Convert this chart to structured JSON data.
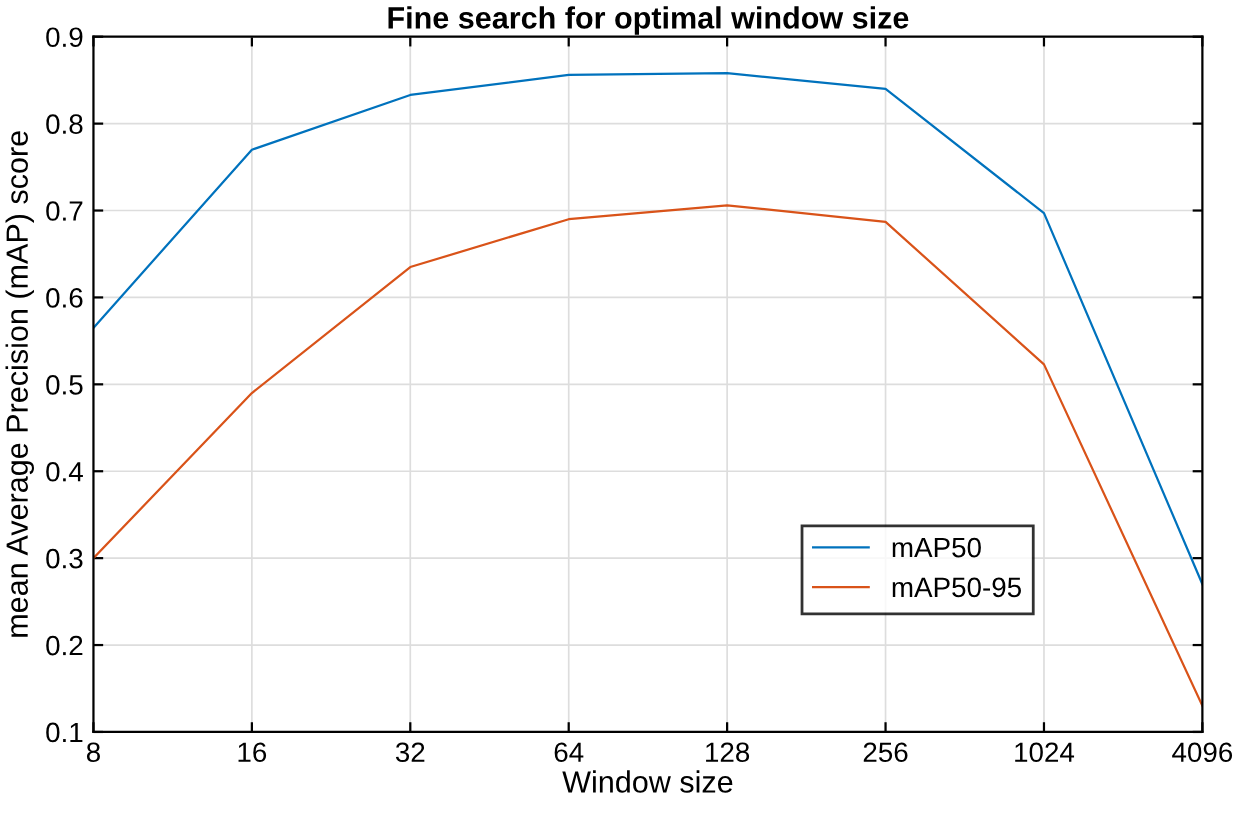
{
  "chart_data": {
    "type": "line",
    "title": "Fine search for optimal window size",
    "xlabel": "Window size",
    "ylabel": "mean Average Precision (mAP) score",
    "categories": [
      "8",
      "16",
      "32",
      "64",
      "128",
      "256",
      "1024",
      "4096"
    ],
    "series": [
      {
        "name": "mAP50",
        "color": "#0072bd",
        "values": [
          0.565,
          0.77,
          0.833,
          0.856,
          0.858,
          0.84,
          0.697,
          0.27
        ]
      },
      {
        "name": "mAP50-95",
        "color": "#d95319",
        "values": [
          0.3,
          0.49,
          0.635,
          0.69,
          0.706,
          0.687,
          0.523,
          0.13
        ]
      }
    ],
    "ylim": [
      0.1,
      0.9
    ],
    "yticks": [
      0.1,
      0.2,
      0.3,
      0.4,
      0.5,
      0.6,
      0.7,
      0.8,
      0.9
    ],
    "grid": true,
    "legend": "bottom right",
    "marker": "none",
    "line_style": "solid"
  }
}
